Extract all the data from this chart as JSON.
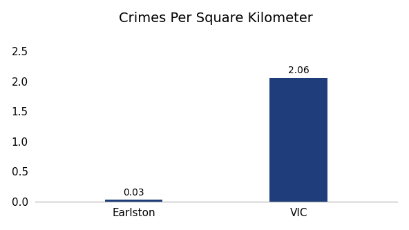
{
  "categories": [
    "Earlston",
    "VIC"
  ],
  "values": [
    0.03,
    2.06
  ],
  "bar_colors": [
    "#1f3d7a",
    "#1f3d7a"
  ],
  "title": "Crimes Per Square Kilometer",
  "title_fontsize": 14,
  "label_fontsize": 11,
  "value_fontsize": 10,
  "tick_fontsize": 11,
  "ylim": [
    0,
    2.8
  ],
  "yticks": [
    0,
    0.5,
    1,
    1.5,
    2,
    2.5
  ],
  "background_color": "#ffffff",
  "bar_width": 0.35
}
